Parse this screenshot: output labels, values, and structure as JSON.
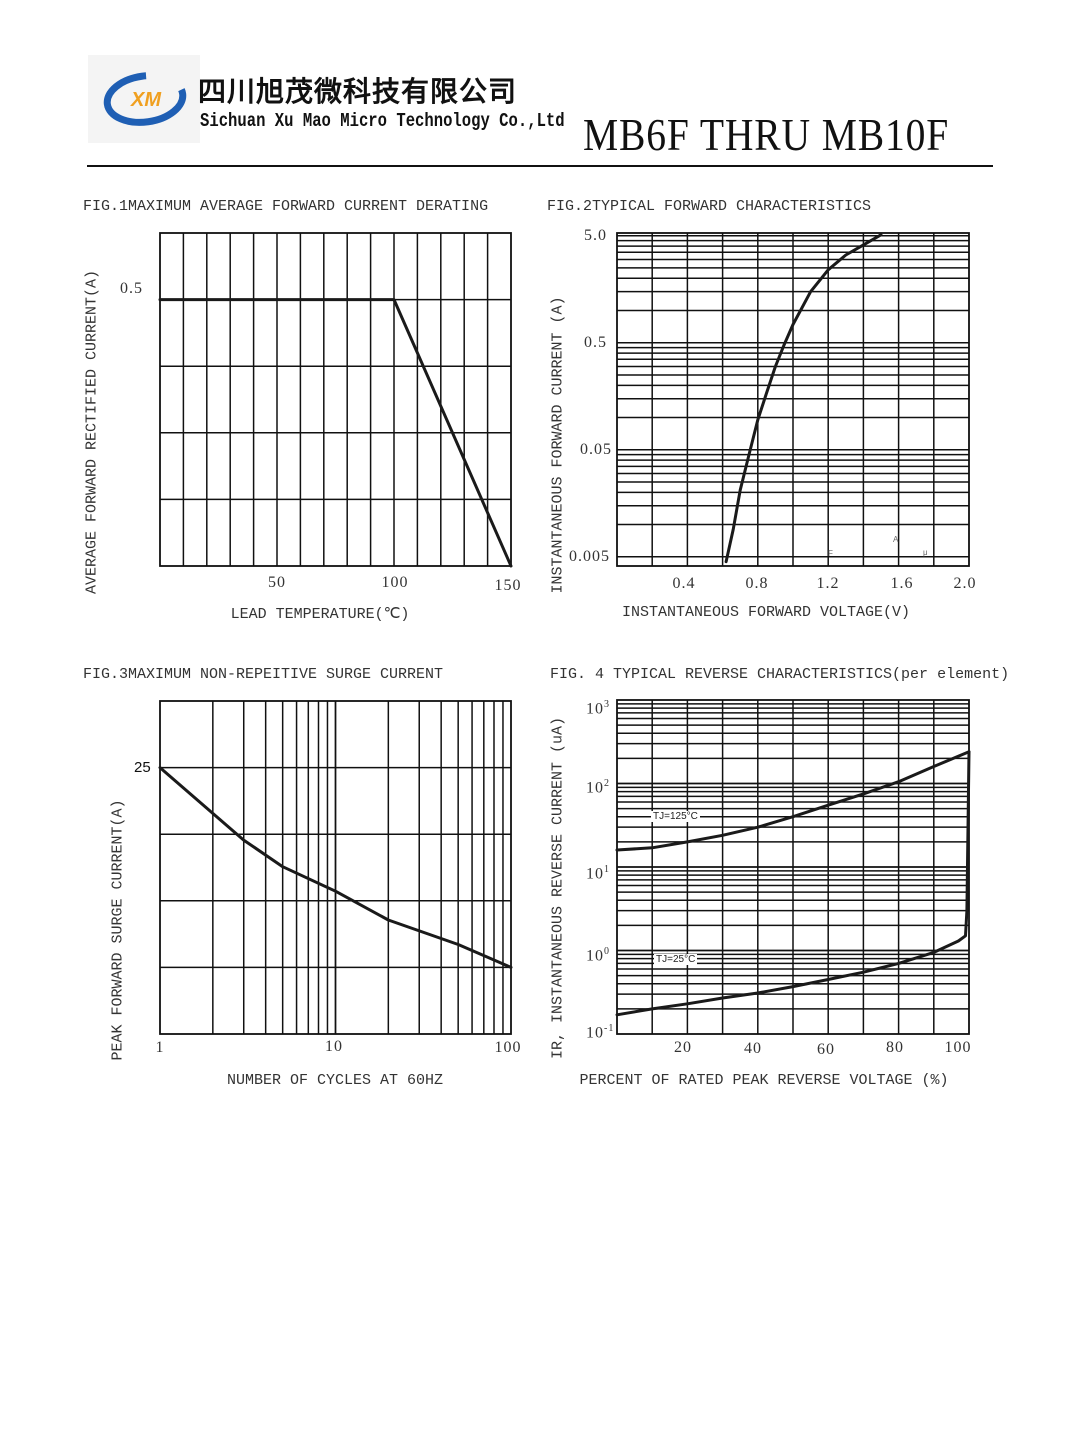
{
  "header": {
    "company_cn": "四川旭茂微科技有限公司",
    "company_en": "Sichuan Xu Mao Micro Technology Co.,Ltd",
    "logo_text": "XM",
    "part_title": "MB6F THRU MB10F"
  },
  "chart_data": [
    {
      "type": "line",
      "title": "FIG.1MAXIMUM AVERAGE FORWARD CURRENT DERATING",
      "xlabel": "LEAD TEMPERATURE(℃)",
      "ylabel": "AVERAGE FORWARD RECTIFIED CURRENT(A)",
      "xlim": [
        0,
        150
      ],
      "ylim": [
        0,
        0.625
      ],
      "x_scale": "linear",
      "y_scale": "linear",
      "x_grid_step": 10,
      "y_grid_step": 0.125,
      "grid": true,
      "x_ticks": [
        "50",
        "100",
        "150"
      ],
      "y_ticks": [
        "0.5"
      ],
      "series": [
        {
          "name": "derating",
          "x": [
            0,
            100,
            150
          ],
          "y": [
            0.5,
            0.5,
            0
          ]
        }
      ]
    },
    {
      "type": "line",
      "title": "FIG.2TYPICAL FORWARD CHARACTERISTICS",
      "xlabel": "INSTANTANEOUS FORWARD VOLTAGE(V)",
      "ylabel": "INSTANTANEOUS FORWARD CURRENT (A)",
      "xlim": [
        0,
        2.0
      ],
      "ylim": [
        0.0041,
        5.3
      ],
      "x_scale": "linear",
      "y_scale": "log",
      "x_grid_step": 0.2,
      "y_decade_bases": [
        0.005,
        0.05,
        0.5
      ],
      "grid": true,
      "x_ticks": [
        "0.4",
        "0.8",
        "1.2",
        "1.6",
        "2.0"
      ],
      "y_ticks": [
        "5.0",
        "0.5",
        "0.05",
        "0.005"
      ],
      "stray_marks": [
        "F",
        "A",
        "μ"
      ],
      "series": [
        {
          "name": "forward",
          "x": [
            0.62,
            0.66,
            0.7,
            0.75,
            0.8,
            0.85,
            0.9,
            0.95,
            1.0,
            1.1,
            1.2,
            1.3,
            1.4,
            1.5
          ],
          "y": [
            0.0045,
            0.009,
            0.021,
            0.045,
            0.095,
            0.17,
            0.3,
            0.48,
            0.74,
            1.5,
            2.4,
            3.3,
            4.1,
            5.1
          ]
        }
      ]
    },
    {
      "type": "line",
      "title": "FIG.3MAXIMUM NON-REPEITIVE SURGE CURRENT",
      "xlabel": "NUMBER OF CYCLES AT 60HZ",
      "ylabel": "PEAK FORWARD SURGE CURRENT(A)",
      "xlim": [
        1,
        100
      ],
      "ylim": [
        0,
        31.25
      ],
      "x_scale": "log",
      "y_scale": "linear",
      "y_grid_step": 6.25,
      "grid": true,
      "x_ticks": [
        "1",
        "10",
        "100"
      ],
      "y_ticks": [
        "25"
      ],
      "series": [
        {
          "name": "surge",
          "x": [
            1,
            2,
            3,
            5,
            10,
            20,
            50,
            100
          ],
          "y": [
            25,
            20.7,
            18.2,
            15.7,
            13.4,
            10.7,
            8.4,
            6.25
          ]
        }
      ]
    },
    {
      "type": "line",
      "title": "FIG. 4 TYPICAL REVERSE CHARACTERISTICS(per element)",
      "xlabel": "PERCENT OF RATED PEAK REVERSE VOLTAGE (%)",
      "ylabel": "IR, INSTANTANEOUS REVERSE CURRENT (uA)",
      "xlim": [
        0,
        100
      ],
      "ylim": [
        0.1,
        1000
      ],
      "x_scale": "linear",
      "y_scale": "log",
      "x_grid_step": 10,
      "y_decade_bases": [
        0.1,
        1,
        10,
        100
      ],
      "grid": true,
      "x_ticks": [
        "20",
        "40",
        "60",
        "80",
        "100"
      ],
      "y_ticks": [
        {
          "base": "10",
          "exp": "3"
        },
        {
          "base": "10",
          "exp": "2"
        },
        {
          "base": "10",
          "exp": "1"
        },
        {
          "base": "10",
          "exp": "0"
        },
        {
          "base": "10",
          "exp": "-1"
        }
      ],
      "series": [
        {
          "name": "TJ=125°C",
          "x": [
            0,
            10,
            20,
            30,
            40,
            50,
            60,
            70,
            80,
            90,
            100
          ],
          "y": [
            16,
            17,
            20,
            24,
            30,
            40,
            55,
            75,
            105,
            160,
            240
          ]
        },
        {
          "name": "TJ=25°C",
          "x": [
            0,
            10,
            20,
            30,
            40,
            50,
            60,
            70,
            80,
            90,
            97,
            99,
            99.4,
            100
          ],
          "y": [
            0.17,
            0.2,
            0.23,
            0.27,
            0.31,
            0.37,
            0.45,
            0.55,
            0.7,
            0.95,
            1.3,
            1.5,
            3,
            240
          ]
        }
      ]
    }
  ]
}
